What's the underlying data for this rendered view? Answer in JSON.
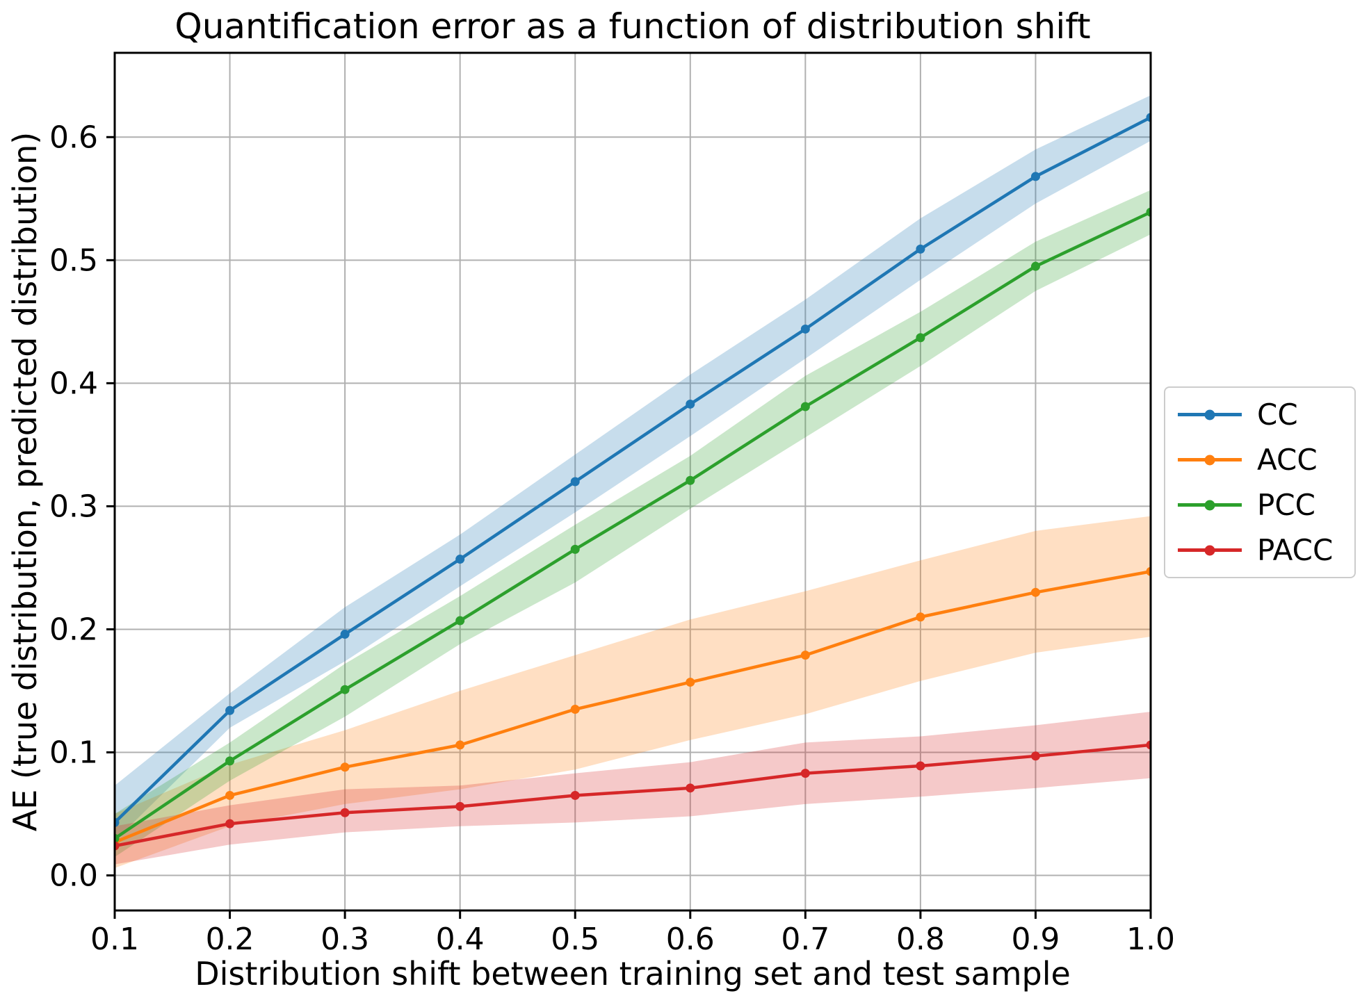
{
  "figure": {
    "title": "Quantification error as a function of distribution shift",
    "xlabel": "Distribution shift between training set and test sample",
    "ylabel": "AE (true distribution, predicted distribution)"
  },
  "chart_data": {
    "type": "line",
    "title": "Quantification error as a function of distribution shift",
    "xlabel": "Distribution shift between training set and test sample",
    "ylabel": "AE (true distribution, predicted distribution)",
    "x": [
      0.1,
      0.2,
      0.3,
      0.4,
      0.5,
      0.6,
      0.7,
      0.8,
      0.9,
      1.0
    ],
    "series": [
      {
        "name": "CC",
        "color": "#1f77b4",
        "values": [
          0.043,
          0.134,
          0.196,
          0.257,
          0.32,
          0.383,
          0.444,
          0.509,
          0.568,
          0.616
        ],
        "band_low": [
          0.028,
          0.12,
          0.174,
          0.235,
          0.295,
          0.357,
          0.42,
          0.484,
          0.546,
          0.597
        ],
        "band_high": [
          0.073,
          0.148,
          0.218,
          0.277,
          0.342,
          0.407,
          0.468,
          0.534,
          0.59,
          0.634
        ]
      },
      {
        "name": "ACC",
        "color": "#ff7f0e",
        "values": [
          0.027,
          0.065,
          0.088,
          0.106,
          0.135,
          0.157,
          0.179,
          0.21,
          0.23,
          0.247
        ],
        "band_low": [
          0.006,
          0.04,
          0.058,
          0.07,
          0.086,
          0.11,
          0.131,
          0.158,
          0.181,
          0.194
        ],
        "band_high": [
          0.05,
          0.09,
          0.118,
          0.15,
          0.179,
          0.208,
          0.231,
          0.256,
          0.28,
          0.292
        ]
      },
      {
        "name": "PCC",
        "color": "#2ca02c",
        "values": [
          0.03,
          0.093,
          0.151,
          0.207,
          0.265,
          0.321,
          0.381,
          0.437,
          0.495,
          0.539
        ],
        "band_low": [
          0.015,
          0.077,
          0.129,
          0.188,
          0.238,
          0.298,
          0.356,
          0.414,
          0.475,
          0.521
        ],
        "band_high": [
          0.05,
          0.108,
          0.172,
          0.227,
          0.285,
          0.341,
          0.406,
          0.458,
          0.515,
          0.557
        ]
      },
      {
        "name": "PACC",
        "color": "#d62728",
        "values": [
          0.024,
          0.042,
          0.051,
          0.056,
          0.065,
          0.071,
          0.083,
          0.089,
          0.097,
          0.106
        ],
        "band_low": [
          0.009,
          0.025,
          0.035,
          0.04,
          0.043,
          0.048,
          0.058,
          0.064,
          0.071,
          0.079
        ],
        "band_high": [
          0.04,
          0.057,
          0.07,
          0.073,
          0.083,
          0.092,
          0.108,
          0.113,
          0.122,
          0.133
        ]
      }
    ],
    "x_ticks": {
      "values": [
        0.1,
        0.2,
        0.3,
        0.4,
        0.5,
        0.6,
        0.7,
        0.8,
        0.9,
        1.0
      ],
      "labels": [
        "0.1",
        "0.2",
        "0.3",
        "0.4",
        "0.5",
        "0.6",
        "0.7",
        "0.8",
        "0.9",
        "1.0"
      ]
    },
    "y_ticks": {
      "values": [
        0.0,
        0.1,
        0.2,
        0.3,
        0.4,
        0.5,
        0.6
      ],
      "labels": [
        "0.0",
        "0.1",
        "0.2",
        "0.3",
        "0.4",
        "0.5",
        "0.6"
      ]
    },
    "xlim": [
      0.1,
      1.0
    ],
    "ylim": [
      -0.0285,
      0.6685
    ],
    "grid": true,
    "grid_color": "#b0b0b0",
    "band_opacity": 0.25,
    "legend": {
      "position": "right-outside",
      "entries": [
        "CC",
        "ACC",
        "PCC",
        "PACC"
      ]
    }
  }
}
